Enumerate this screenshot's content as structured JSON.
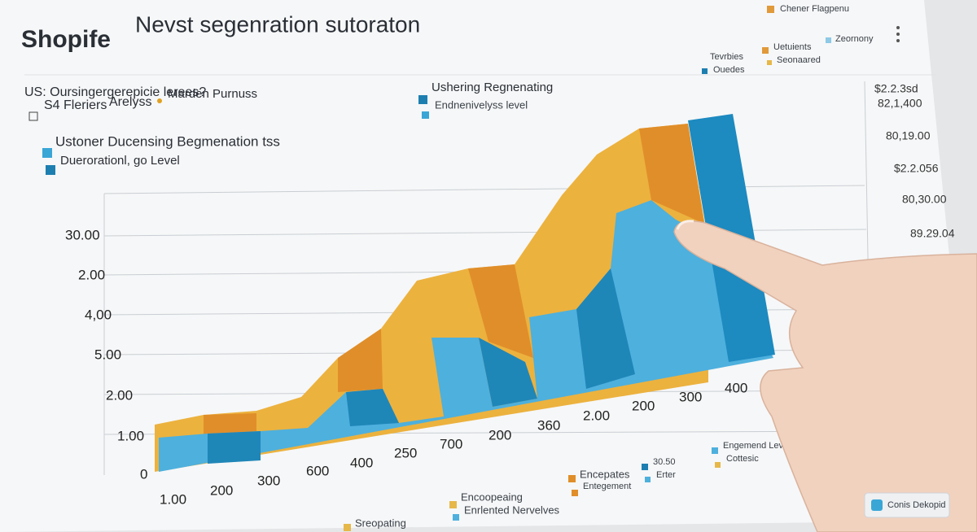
{
  "header": {
    "brand": "Shopife",
    "title": "Nevst segenration sutoraton",
    "top_right": "Chener Flagpenu"
  },
  "subtitle": "US: Oursingergerepicie lerees?",
  "filters": [
    "S4 Fleriers",
    "Arelyss",
    "Marden Purnuss"
  ],
  "legend_left": [
    "Ustoner Ducensing Begmenation tss",
    "Duerorationl, go Level"
  ],
  "legend_center": [
    "Ushering Regnenating",
    "Endnenivelyss level"
  ],
  "legend_top": [
    "Tevrbies",
    "Ouedes",
    "Uetuients",
    "Seonaared",
    "Zeornony"
  ],
  "left_axis": [
    "30.00",
    "2.00",
    "4,00",
    "5.00",
    "2.00",
    "1.00",
    "0"
  ],
  "right_axis": [
    "$2.2.3sd",
    "82,1,400",
    "80,19.00",
    "$2.2.056",
    "80,30.00",
    "89.29.04"
  ],
  "bottom_axis": [
    "1.00",
    "200",
    "300",
    "600",
    "400",
    "250",
    "700",
    "200",
    "360",
    "2.00",
    "200",
    "300",
    "400"
  ],
  "bottom_legend": [
    "Sreopating",
    "Encoopeaing",
    "Enrlented Nervelves",
    "Encepates",
    "Entegement",
    "30.50",
    "Erter",
    "Engemend Levels",
    "Cottesic"
  ],
  "footer_button": "Conis Dekopid"
}
